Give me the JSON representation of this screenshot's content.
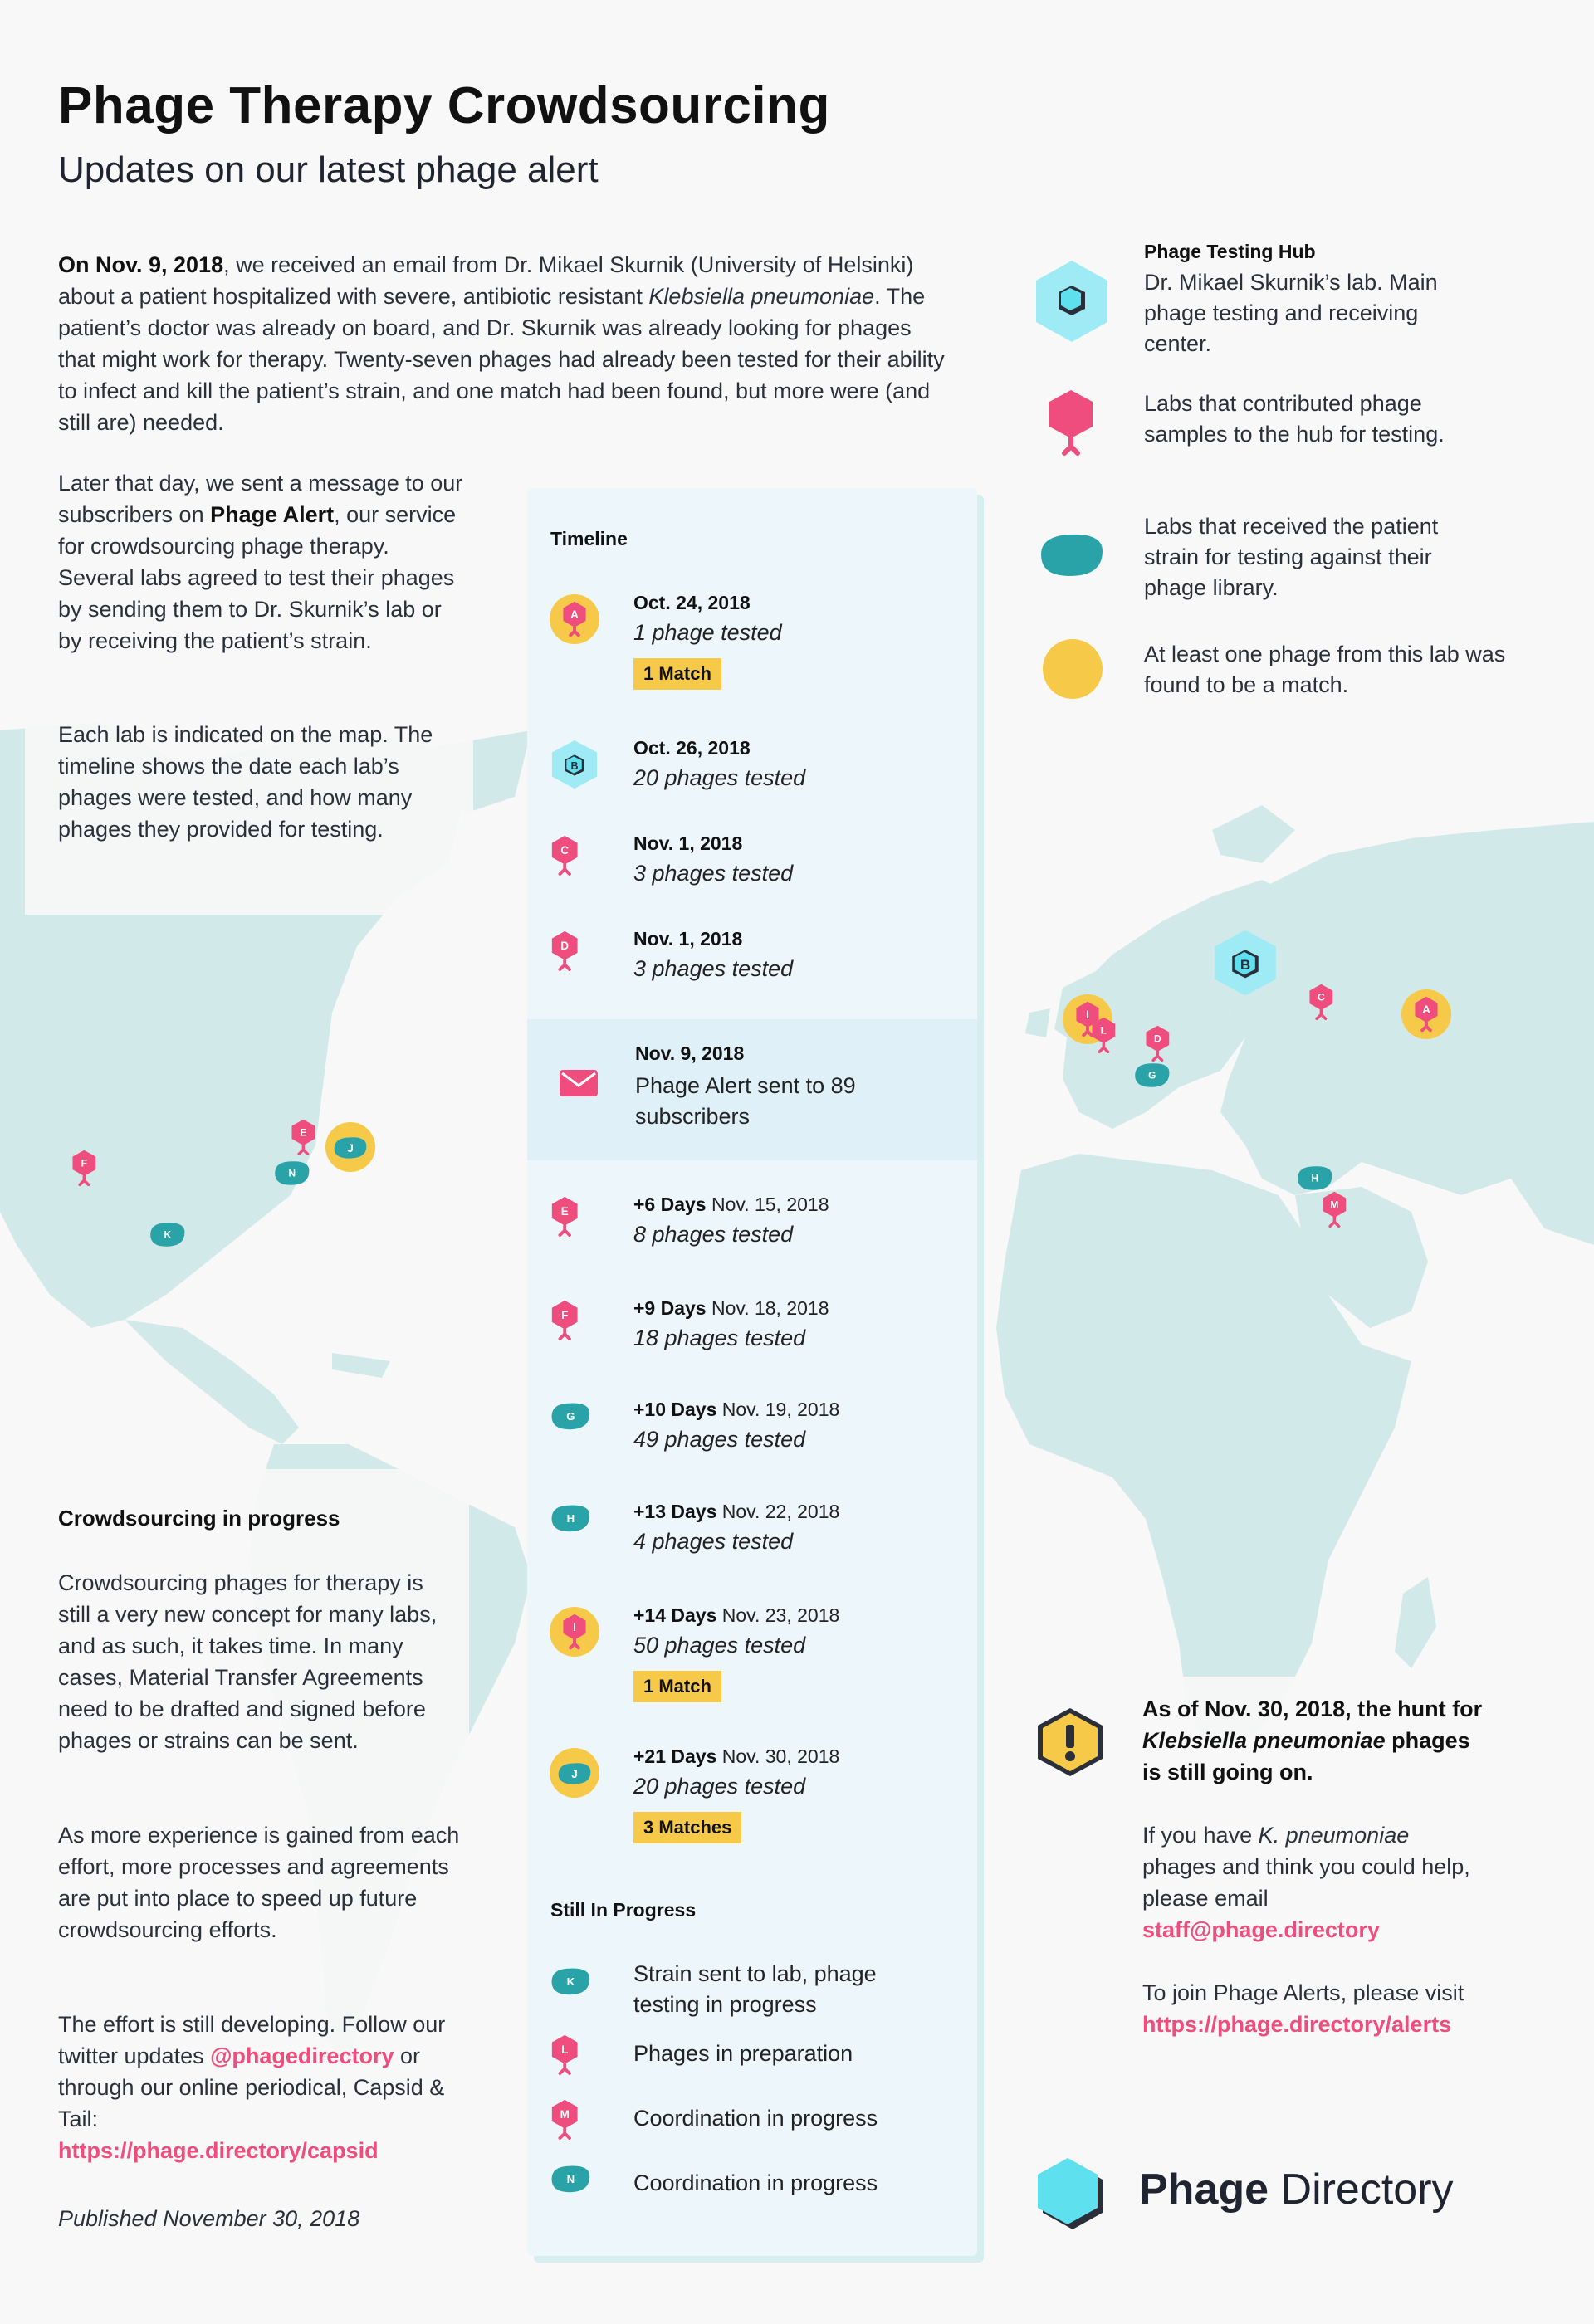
{
  "header": {
    "title": "Phage Therapy Crowdsourcing",
    "subtitle": "Updates on our latest phage alert"
  },
  "intro": {
    "p1_date": "On Nov. 9, 2018",
    "p1_text_a": ", we received an email from Dr. Mikael Skurnik (University of Helsinki) about a patient hospitalized with severe, antibiotic resistant ",
    "p1_species": "Klebsiella pneumoniae",
    "p1_text_b": ". The patient’s doctor was already on board, and Dr. Skurnik was already looking for phages that might work for therapy. Twenty-seven phages had already been tested for their ability to infect and kill the patient’s strain, and one match had been found, but more were (and still are) needed.",
    "p2_a": "Later that day, we sent a message to our subscribers on ",
    "p2_bold": "Phage Alert",
    "p2_b": ", our service for crowdsourcing phage therapy. Several labs agreed to test their phages by sending them to Dr. Skurnik’s lab or by receiving the patient’s strain.",
    "p3": "Each lab is indicated on the map. The timeline shows the date each lab’s phages were tested, and how many phages they provided for testing."
  },
  "legend": {
    "hub_title": "Phage Testing Hub",
    "hub_text": "Dr. Mikael Skurnik’s lab. Main phage testing and receiving center.",
    "contributed": "Labs that contributed phage samples to the hub for testing.",
    "received": "Labs that received the patient strain for testing against their phage library.",
    "match": "At least one phage from this lab was found to be a match."
  },
  "timeline": {
    "title": "Timeline",
    "items": [
      {
        "letter": "A",
        "date": "Oct. 24, 2018",
        "count": "1 phage tested",
        "badge": "1 Match"
      },
      {
        "letter": "B",
        "date": "Oct. 26, 2018",
        "count": "20 phages tested"
      },
      {
        "letter": "C",
        "date": "Nov. 1, 2018",
        "count": "3 phages tested"
      },
      {
        "letter": "D",
        "date": "Nov. 1, 2018",
        "count": "3 phages tested"
      }
    ],
    "alert": {
      "date": "Nov. 9, 2018",
      "text": "Phage Alert sent to 89 subscribers"
    },
    "later": [
      {
        "letter": "E",
        "days": "+6 Days",
        "date": "Nov. 15, 2018",
        "count": "8 phages tested"
      },
      {
        "letter": "F",
        "days": "+9 Days",
        "date": "Nov. 18, 2018",
        "count": "18 phages tested"
      },
      {
        "letter": "G",
        "days": "+10 Days",
        "date": "Nov. 19, 2018",
        "count": "49 phages tested"
      },
      {
        "letter": "H",
        "days": "+13 Days",
        "date": "Nov. 22, 2018",
        "count": "4 phages tested"
      },
      {
        "letter": "I",
        "days": "+14 Days",
        "date": "Nov. 23, 2018",
        "count": "50 phages tested",
        "badge": "1 Match"
      },
      {
        "letter": "J",
        "days": "+21 Days",
        "date": "Nov. 30, 2018",
        "count": "20 phages tested",
        "badge": "3 Matches"
      }
    ],
    "progress_title": "Still In Progress",
    "progress": [
      {
        "letter": "K",
        "text": "Strain sent to lab, phage testing in progress"
      },
      {
        "letter": "L",
        "text": "Phages in preparation"
      },
      {
        "letter": "M",
        "text": "Coordination in progress"
      },
      {
        "letter": "N",
        "text": "Coordination in progress"
      }
    ]
  },
  "crowd": {
    "title": "Crowdsourcing in progress",
    "p1": "Crowdsourcing phages for therapy is still a very new concept for many labs, and as such, it takes time. In many cases, Material Transfer Agreements need to be drafted and signed before phages or strains can be sent.",
    "p2": "As more experience is gained from each effort, more processes and agreements are put into place to speed up future crowdsourcing efforts.",
    "p3": "The effort is still developing. Follow our twitter updates ",
    "twitter": "@phagedirectory",
    "p3b": " or through our online periodical, Capsid & Tail:",
    "capsid_url": "https://phage.directory/capsid",
    "published": "Published November 30, 2018"
  },
  "hunt": {
    "bold_a": "As of Nov. 30, 2018, the hunt for ",
    "bold_species": "Klebsiella pneumoniae",
    "bold_b": " phages is still going on.",
    "p1_a": "If you have ",
    "p1_species": "K. pneumoniae",
    "p1_b": " phages and think you could help, please email",
    "email": "staff@phage.directory",
    "p2": "To join Phage Alerts, please visit",
    "alerts_url": "https://phage.directory/alerts"
  },
  "brand": {
    "bold": "Phage",
    "light": " Directory"
  },
  "map_labels": {
    "A": "A",
    "B": "B",
    "C": "C",
    "D": "D",
    "E": "E",
    "F": "F",
    "G": "G",
    "H": "H",
    "I": "I",
    "J": "J",
    "K": "K",
    "L": "L",
    "M": "M",
    "N": "N"
  },
  "colors": {
    "pink": "#ef4d7d",
    "teal": "#2aa3a8",
    "yellow": "#f7c948",
    "cyan": "#9eeaf5",
    "map": "#cfe7e8",
    "background": "#f8f8f8"
  }
}
